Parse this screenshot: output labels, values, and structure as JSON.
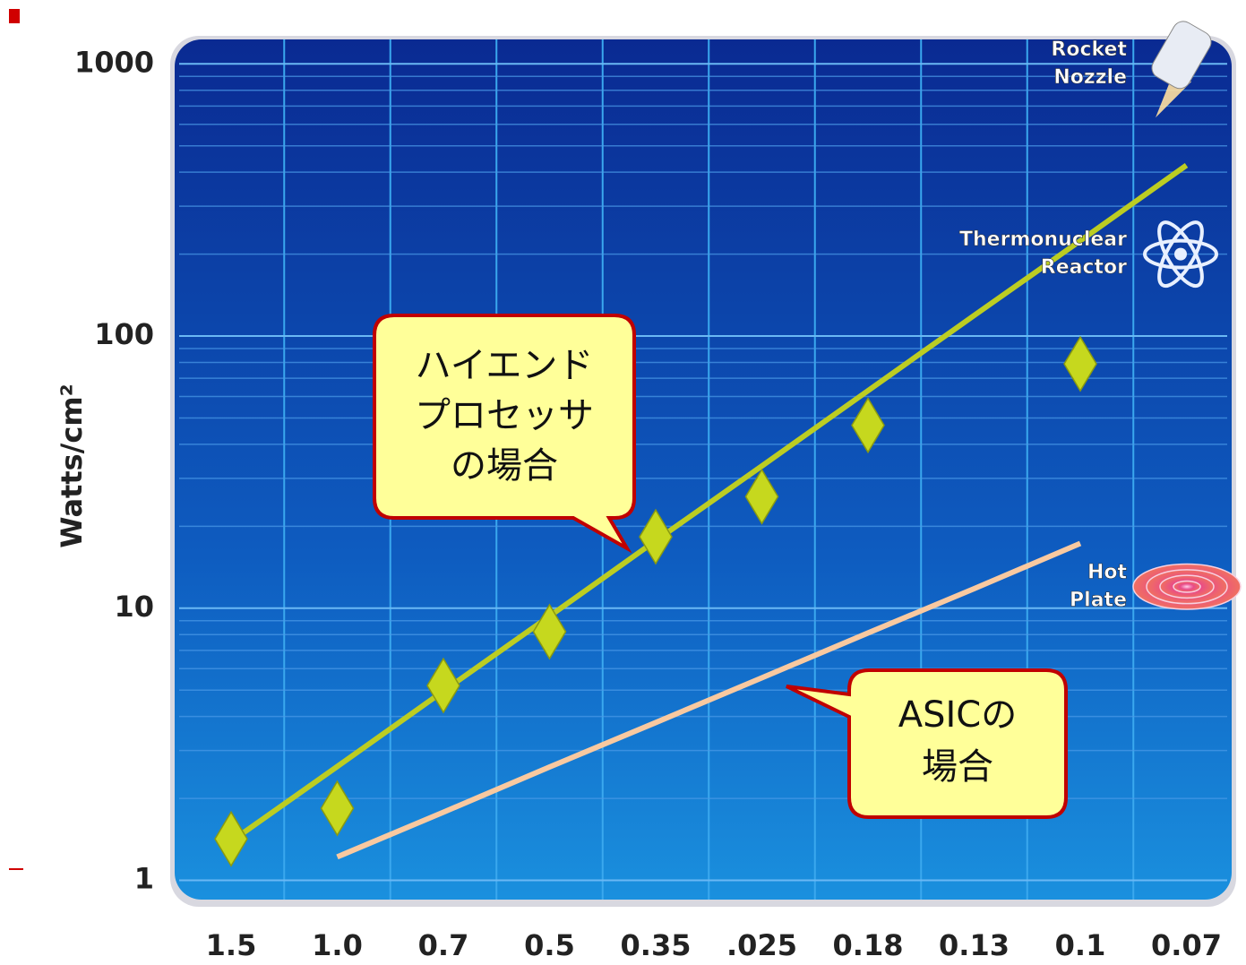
{
  "chart_data": {
    "type": "scatter",
    "y_label": "Watts/cm²",
    "categories": [
      "1.5",
      "1.0",
      "0.7",
      "0.5",
      "0.35",
      ".025",
      "0.18",
      "0.13",
      "0.1",
      "0.07"
    ],
    "series": [
      {
        "kind": "points",
        "color": "#c6d81e",
        "values": [
          1.42,
          1.84,
          5.2,
          8.2,
          18.3,
          25.7,
          47,
          null,
          79,
          null
        ]
      },
      {
        "kind": "line",
        "color": "#bccd22",
        "values": [
          1.39,
          2.62,
          4.96,
          9.35,
          17.7,
          33.3,
          63,
          119,
          224,
          424
        ]
      },
      {
        "kind": "line",
        "color": "#f9c9a0",
        "values": [
          null,
          1.22,
          1.78,
          2.61,
          3.8,
          5.55,
          8.11,
          11.8,
          17.3,
          null
        ]
      }
    ],
    "log_scale": true,
    "ylim": [
      0.85,
      1230
    ],
    "yticks": [
      1,
      10,
      100,
      1000
    ],
    "minor_grid": [
      2,
      3,
      4,
      5,
      6,
      7,
      8,
      9,
      20,
      30,
      40,
      50,
      60,
      70,
      80,
      90,
      200,
      300,
      400,
      500,
      600,
      700,
      800,
      900
    ],
    "references": [
      {
        "lines": [
          "Rocket",
          "Nozzle"
        ],
        "value": 1000
      },
      {
        "lines": [
          "Thermonuclear",
          "Reactor"
        ],
        "value": 200
      },
      {
        "lines": [
          "Hot",
          "Plate"
        ],
        "value": 12
      }
    ],
    "callouts": [
      {
        "lines": [
          "ハイエンド",
          "プロセッサ",
          "の場合"
        ]
      },
      {
        "lines": [
          "ASICの",
          "場合"
        ]
      }
    ]
  }
}
